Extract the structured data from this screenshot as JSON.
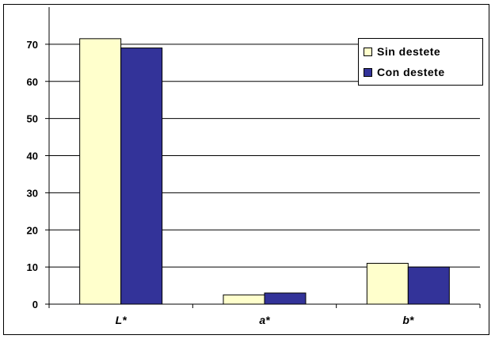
{
  "chart_data": {
    "type": "bar",
    "categories": [
      "L*",
      "a*",
      "b*"
    ],
    "series": [
      {
        "name": "Sin destete",
        "values": [
          71.5,
          2.5,
          11
        ],
        "color": "#FFFFCC"
      },
      {
        "name": "Con destete",
        "values": [
          69,
          3,
          10
        ],
        "color": "#333399"
      }
    ],
    "yticks": [
      0,
      10,
      20,
      30,
      40,
      50,
      60,
      70
    ],
    "ylim": [
      0,
      80
    ],
    "grid": true,
    "legend_position": "top-right",
    "title": "",
    "xlabel": "",
    "ylabel": ""
  }
}
